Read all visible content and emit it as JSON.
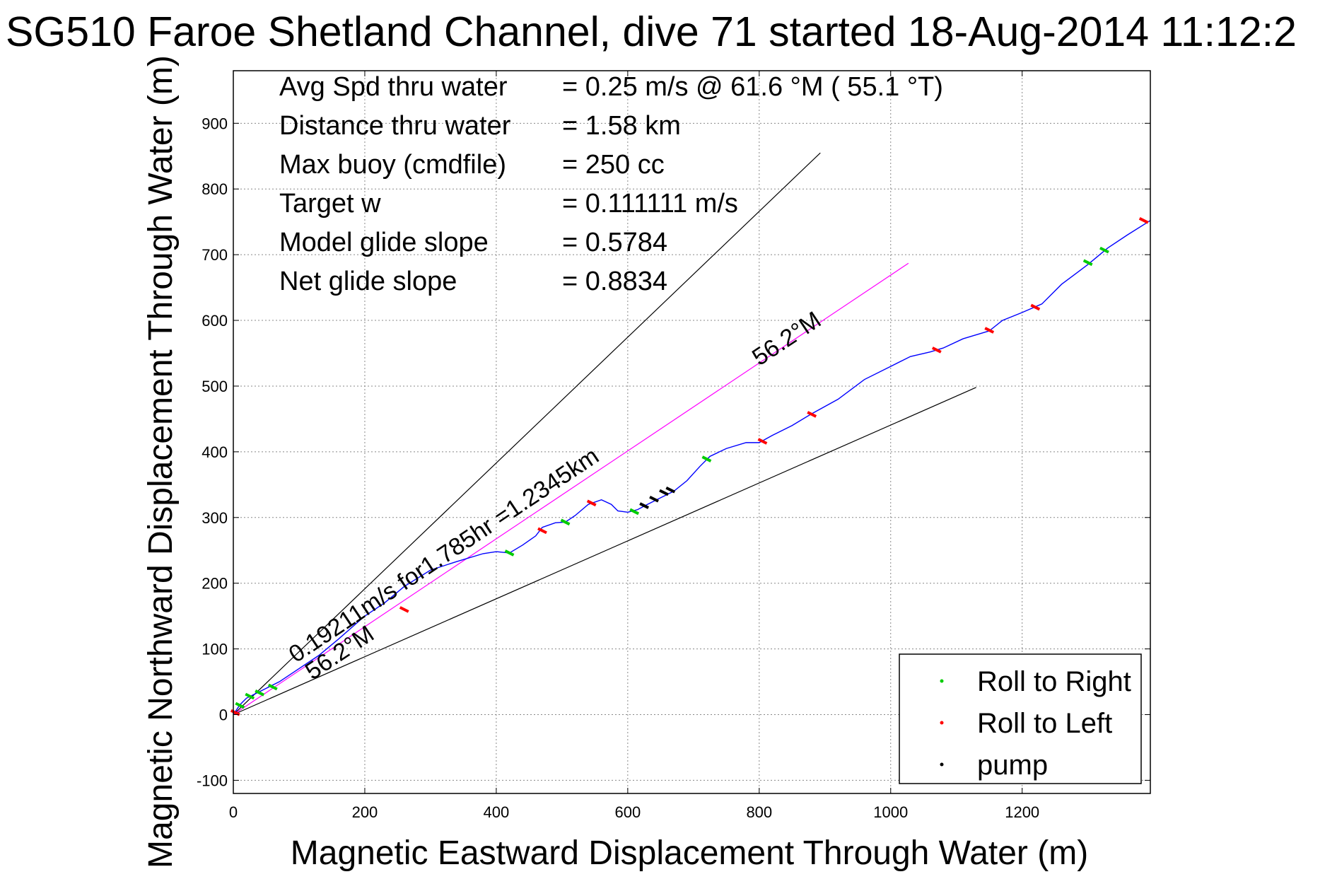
{
  "chart_data": {
    "type": "line",
    "title": "SG510 Faroe Shetland Channel, dive 71 started 18-Aug-2014 11:12:2",
    "xlabel": "Magnetic Eastward Displacement Through Water (m)",
    "ylabel": "Magnetic Northward Displacement Through Water (m)",
    "xlim": [
      0,
      1395
    ],
    "ylim": [
      -120,
      980
    ],
    "xticks": [
      0,
      200,
      400,
      600,
      800,
      1000,
      1200
    ],
    "yticks": [
      -100,
      0,
      100,
      200,
      300,
      400,
      500,
      600,
      700,
      800,
      900
    ],
    "grid": true,
    "stats": [
      {
        "label": "Avg Spd thru water",
        "value": "=  0.25 m/s @  61.6 °M ( 55.1 °T)"
      },
      {
        "label": "Distance thru water",
        "value": "=  1.58 km"
      },
      {
        "label": "Max buoy (cmdfile)",
        "value": "= 250 cc"
      },
      {
        "label": "Target w",
        "value": "= 0.111111 m/s"
      },
      {
        "label": "Model glide slope",
        "value": "= 0.5784"
      },
      {
        "label": "Net glide slope",
        "value": "= 0.8834"
      }
    ],
    "annotations": [
      {
        "text": "0.19211m/s for1.785hr =1.2345km",
        "x": 95,
        "y": 78,
        "angle_deg": 33.7
      },
      {
        "text": "56.2°M",
        "x": 120,
        "y": 52,
        "angle_deg": 33.7
      },
      {
        "text": "56.2°M",
        "x": 800,
        "y": 530,
        "angle_deg": 33.7
      }
    ],
    "reference_lines": [
      {
        "name": "upper-envelope",
        "color": "#000000",
        "points": [
          [
            0,
            0
          ],
          [
            893,
            855
          ]
        ]
      },
      {
        "name": "lower-envelope",
        "color": "#000000",
        "points": [
          [
            0,
            0
          ],
          [
            1130,
            498
          ]
        ]
      },
      {
        "name": "current-vector",
        "color": "#ff00ff",
        "points": [
          [
            0,
            0
          ],
          [
            1027,
            687
          ]
        ]
      }
    ],
    "series": [
      {
        "name": "track",
        "color": "#0000ff",
        "x": [
          0,
          10,
          20,
          40,
          70,
          100,
          130,
          160,
          200,
          230,
          260,
          300,
          340,
          380,
          400,
          420,
          440,
          460,
          470,
          490,
          505,
          520,
          540,
          560,
          575,
          585,
          600,
          615,
          630,
          650,
          670,
          690,
          710,
          725,
          750,
          780,
          800,
          820,
          850,
          880,
          920,
          960,
          1000,
          1030,
          1060,
          1080,
          1110,
          1150,
          1170,
          1200,
          1230,
          1260,
          1300,
          1330,
          1360,
          1395
        ],
        "y": [
          0,
          15,
          25,
          35,
          50,
          70,
          90,
          115,
          150,
          170,
          195,
          220,
          233,
          245,
          248,
          246,
          258,
          272,
          285,
          292,
          293,
          303,
          320,
          327,
          320,
          310,
          308,
          312,
          320,
          330,
          340,
          356,
          378,
          393,
          405,
          414,
          414,
          425,
          440,
          458,
          480,
          510,
          530,
          545,
          552,
          558,
          572,
          584,
          600,
          612,
          625,
          655,
          685,
          710,
          730,
          752
        ]
      }
    ],
    "markers": [
      {
        "name": "Roll to Right",
        "color": "#00cc00",
        "x": [
          10,
          25,
          40,
          60,
          420,
          505,
          610,
          720,
          1300,
          1325
        ],
        "y": [
          14,
          28,
          33,
          42,
          246,
          293,
          309,
          389,
          688,
          707
        ]
      },
      {
        "name": "Roll to Left",
        "color": "#ff0000",
        "x": [
          3,
          260,
          470,
          545,
          805,
          880,
          1070,
          1150,
          1220,
          1385
        ],
        "y": [
          3,
          160,
          280,
          322,
          416,
          457,
          555,
          585,
          620,
          752
        ]
      },
      {
        "name": "pump",
        "color": "#000000",
        "x": [
          625,
          640,
          655,
          665
        ],
        "y": [
          318,
          328,
          338,
          342
        ]
      }
    ],
    "legend": {
      "position": "bottom-right",
      "entries": [
        {
          "label": "Roll to Right",
          "color": "#00cc00"
        },
        {
          "label": "Roll to Left",
          "color": "#ff0000"
        },
        {
          "label": "pump",
          "color": "#000000"
        }
      ]
    }
  }
}
